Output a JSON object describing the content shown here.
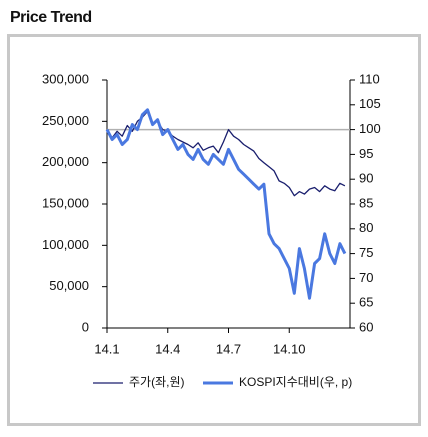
{
  "chart_data": {
    "type": "line",
    "title": "Price Trend",
    "x": [
      1,
      1.25,
      1.5,
      1.75,
      2,
      2.25,
      2.5,
      2.75,
      3,
      3.25,
      3.5,
      3.75,
      4,
      4.25,
      4.5,
      4.75,
      5,
      5.25,
      5.5,
      5.75,
      6,
      6.25,
      6.5,
      6.75,
      7,
      7.25,
      7.5,
      7.75,
      8,
      8.25,
      8.5,
      8.75,
      9,
      9.25,
      9.5,
      9.75,
      10,
      10.25,
      10.5,
      10.75,
      11,
      11.25,
      11.5,
      11.75,
      12,
      12.25,
      12.5,
      12.75
    ],
    "xlim": [
      1,
      13
    ],
    "xticks": [
      {
        "value": 1,
        "label": "14.1"
      },
      {
        "value": 4,
        "label": "14.4"
      },
      {
        "value": 7,
        "label": "14.7"
      },
      {
        "value": 10,
        "label": "14.10"
      }
    ],
    "ylim": [
      0,
      300000
    ],
    "yticks": [
      0,
      {
        "value": 50000,
        "label": "50,000"
      },
      {
        "value": 100000,
        "label": "100,000"
      },
      {
        "value": 150000,
        "label": "150,000"
      },
      {
        "value": 200000,
        "label": "200,000"
      },
      {
        "value": 250000,
        "label": "250,000"
      },
      {
        "value": 300000,
        "label": "300,000"
      }
    ],
    "y2lim": [
      60,
      110
    ],
    "y2ticks": [
      60,
      65,
      70,
      75,
      80,
      85,
      90,
      95,
      100,
      105,
      110
    ],
    "reference_line": {
      "axis": "y2",
      "value": 100,
      "color": "#b0b0b0"
    },
    "legend": "bottom",
    "series": [
      {
        "name": "주가(좌,원)",
        "color": "#1a1f6e",
        "width": 1.3,
        "values": [
          240000,
          230000,
          238000,
          232000,
          245000,
          238000,
          250000,
          255000,
          262000,
          248000,
          250000,
          240000,
          238000,
          232000,
          228000,
          225000,
          222000,
          218000,
          224000,
          215000,
          218000,
          220000,
          212000,
          225000,
          240000,
          232000,
          228000,
          222000,
          218000,
          214000,
          205000,
          200000,
          195000,
          190000,
          178000,
          175000,
          170000,
          160000,
          165000,
          162000,
          168000,
          170000,
          165000,
          172000,
          168000,
          166000,
          175000,
          172000
        ]
      },
      {
        "name": "KOSPI지수대비(우, p)",
        "color": "#4a78e0",
        "width": 3,
        "axis": "y2",
        "values": [
          100,
          98,
          99,
          97,
          98,
          101,
          100,
          103,
          104,
          101,
          102,
          99,
          100,
          98,
          96,
          97,
          95,
          94,
          96,
          94,
          93,
          95,
          94,
          93,
          96,
          94,
          92,
          91,
          90,
          89,
          88,
          89,
          79,
          77,
          76,
          74,
          72,
          67,
          76,
          72,
          66,
          73,
          74,
          79,
          75,
          73,
          77,
          75
        ]
      }
    ]
  }
}
